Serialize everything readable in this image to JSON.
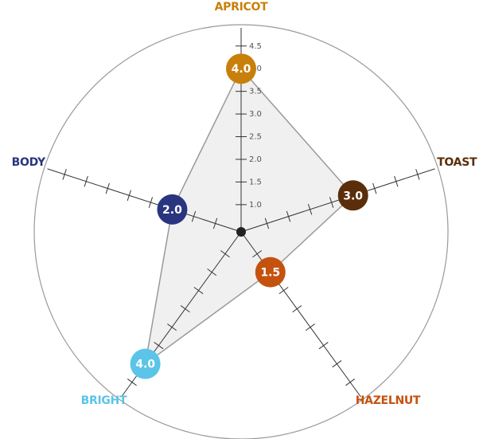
{
  "chart_data": {
    "type": "radar",
    "categories": [
      "APRICOT",
      "TOAST",
      "HAZELNUT",
      "BRIGHT",
      "BODY"
    ],
    "values": [
      4,
      3,
      1.5,
      4,
      2
    ],
    "value_labels": [
      "4.0",
      "3.0",
      "1.5",
      "4.0",
      "2.0"
    ],
    "colors": [
      "#c8800a",
      "#5a2e0a",
      "#c4520e",
      "#5bc4e8",
      "#2a3580"
    ],
    "ylim": [
      0.4,
      4.9
    ],
    "yticks": [
      {
        "value": 1,
        "label": "1.0"
      },
      1.5,
      {
        "value": 2,
        "label": "2.0"
      },
      2.5,
      {
        "value": 3,
        "label": "3.0"
      },
      3.5,
      {
        "value": 4,
        "label": "4.0"
      },
      4.5
    ]
  }
}
